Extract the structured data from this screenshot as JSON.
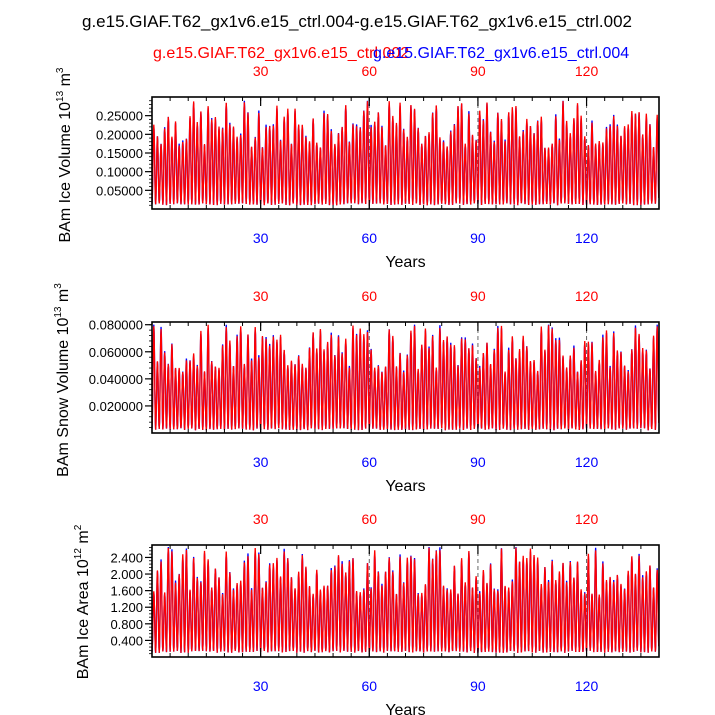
{
  "title": "g.e15.GIAF.T62_gx1v6.e15_ctrl.004-g.e15.GIAF.T62_gx1v6.e15_ctrl.002",
  "colors": {
    "series_1": "#ff0000",
    "series_2": "#0000ff",
    "axis": "#000000",
    "refline": "#666666"
  },
  "legend": {
    "series_1_label": "g.e15.GIAF.T62_gx1v6.e15_ctrl.002",
    "series_2_label": "g.e15.GIAF.T62_gx1v6.e15_ctrl.004"
  },
  "chart_data": [
    {
      "type": "line",
      "ylabel": "BAm Ice Volume 10",
      "ylabel_exp": "13",
      "ylabel_unit": " m",
      "ylabel_unit_exp": "3",
      "xlabel": "Years",
      "xlim": [
        0,
        140
      ],
      "ylim": [
        0.0,
        0.3
      ],
      "yticks": [
        0.05,
        0.1,
        0.15,
        0.2,
        0.25
      ],
      "ytick_labels": [
        "0.05000",
        "0.10000",
        "0.15000",
        "0.20000",
        "0.25000"
      ],
      "xticks": [
        30,
        60,
        90,
        120
      ],
      "xtick_labels": [
        "30",
        "60",
        "90",
        "120"
      ],
      "reference_lines_x": [
        60,
        90,
        120
      ],
      "series": [
        {
          "name": "g.e15.GIAF.T62_gx1v6.e15_ctrl.002",
          "min": 0.01,
          "max": 0.26,
          "peak_max": 0.29
        },
        {
          "name": "g.e15.GIAF.T62_gx1v6.e15_ctrl.004",
          "min": 0.01,
          "max": 0.26,
          "peak_max": 0.29
        }
      ]
    },
    {
      "type": "line",
      "ylabel": "BAm Snow Volume 10",
      "ylabel_exp": "13",
      "ylabel_unit": " m",
      "ylabel_unit_exp": "3",
      "xlabel": "Years",
      "xlim": [
        0,
        140
      ],
      "ylim": [
        0.0,
        0.082
      ],
      "yticks": [
        0.02,
        0.04,
        0.06,
        0.08
      ],
      "ytick_labels": [
        "0.020000",
        "0.040000",
        "0.060000",
        "0.080000"
      ],
      "xticks": [
        30,
        60,
        90,
        120
      ],
      "xtick_labels": [
        "30",
        "60",
        "90",
        "120"
      ],
      "reference_lines_x": [
        60,
        90,
        120
      ],
      "series": [
        {
          "name": "g.e15.GIAF.T62_gx1v6.e15_ctrl.002",
          "min": 0.002,
          "max": 0.07,
          "peak_max": 0.08
        },
        {
          "name": "g.e15.GIAF.T62_gx1v6.e15_ctrl.004",
          "min": 0.002,
          "max": 0.07,
          "peak_max": 0.08
        }
      ]
    },
    {
      "type": "line",
      "ylabel": "BAm Ice Area 10",
      "ylabel_exp": "12",
      "ylabel_unit": " m",
      "ylabel_unit_exp": "2",
      "xlabel": "Years",
      "xlim": [
        0,
        140
      ],
      "ylim": [
        0.0,
        2.7
      ],
      "yticks": [
        0.4,
        0.8,
        1.2,
        1.6,
        2.0,
        2.4
      ],
      "ytick_labels": [
        "0.400",
        "0.800",
        "1.200",
        "1.600",
        "2.000",
        "2.400"
      ],
      "xticks": [
        30,
        60,
        90,
        120
      ],
      "xtick_labels": [
        "30",
        "60",
        "90",
        "120"
      ],
      "reference_lines_x": [
        60,
        90,
        120
      ],
      "series": [
        {
          "name": "g.e15.GIAF.T62_gx1v6.e15_ctrl.002",
          "min": 0.1,
          "max": 2.5,
          "peak_max": 2.65
        },
        {
          "name": "g.e15.GIAF.T62_gx1v6.e15_ctrl.004",
          "min": 0.1,
          "max": 2.5,
          "peak_max": 2.65
        }
      ]
    }
  ]
}
